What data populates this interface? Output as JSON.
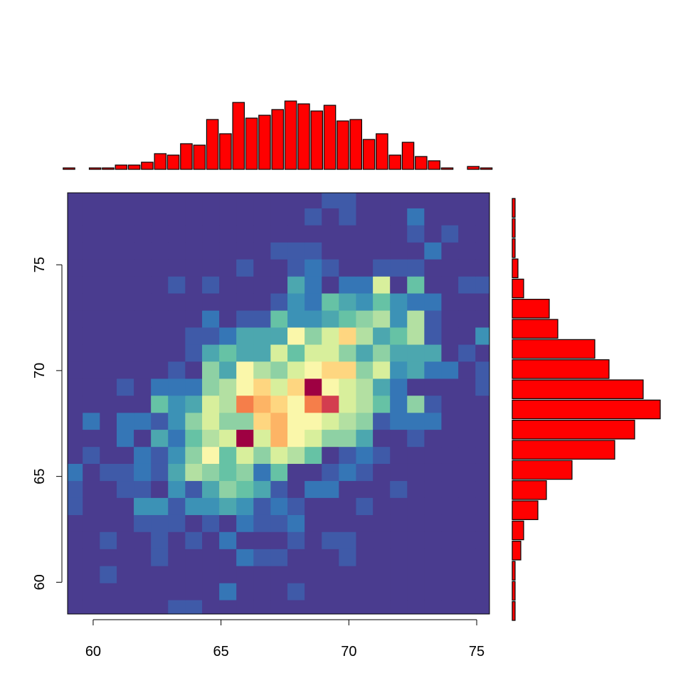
{
  "chart_data": [
    {
      "type": "heatmap",
      "xlim": [
        59,
        75.5
      ],
      "ylim": [
        58.5,
        78.4
      ],
      "xticks": [
        60,
        65,
        70,
        75
      ],
      "yticks": [
        60,
        65,
        70,
        75
      ],
      "xbins": [
        58.92,
        59.59,
        60.26,
        60.92,
        61.59,
        62.26,
        62.93,
        63.6,
        64.26,
        64.93,
        65.6,
        66.27,
        66.94,
        67.6,
        68.27,
        68.94,
        69.61,
        70.28,
        70.94,
        71.61,
        72.28,
        72.95,
        73.62,
        74.28,
        74.95,
        75.62
      ],
      "ybins": [
        58.36,
        59.17,
        59.97,
        60.78,
        61.58,
        62.39,
        63.19,
        64.0,
        64.8,
        65.61,
        66.41,
        67.22,
        68.02,
        68.83,
        69.63,
        70.44,
        71.24,
        72.05,
        72.85,
        73.66,
        74.46,
        75.27,
        76.07,
        76.88,
        77.68,
        78.49
      ],
      "colors": [
        "#4A3C8F",
        "#3F5AA8",
        "#3576B6",
        "#3C92B6",
        "#4CA7AF",
        "#66C2A5",
        "#8ED1A4",
        "#B3E0A2",
        "#D8EF9C",
        "#FAF7AA",
        "#FED680",
        "#FDB465",
        "#F57E4A",
        "#D33D4F",
        "#9E0142"
      ],
      "z": [
        [
          0,
          0,
          0,
          0,
          0,
          0,
          1,
          1,
          0,
          0,
          0,
          0,
          0,
          0,
          0,
          0,
          0,
          0,
          0,
          0,
          0,
          0,
          0,
          0,
          0
        ],
        [
          0,
          0,
          0,
          0,
          0,
          0,
          0,
          0,
          0,
          2,
          0,
          0,
          0,
          1,
          0,
          0,
          0,
          0,
          0,
          0,
          0,
          0,
          0,
          0,
          0
        ],
        [
          0,
          0,
          1,
          0,
          0,
          0,
          0,
          0,
          0,
          0,
          0,
          0,
          0,
          0,
          0,
          0,
          0,
          0,
          0,
          0,
          0,
          0,
          0,
          0,
          0
        ],
        [
          0,
          0,
          0,
          0,
          0,
          1,
          0,
          0,
          0,
          0,
          2,
          1,
          1,
          0,
          0,
          0,
          1,
          0,
          0,
          0,
          0,
          0,
          0,
          0,
          0
        ],
        [
          0,
          0,
          1,
          0,
          0,
          1,
          0,
          1,
          0,
          2,
          0,
          0,
          0,
          1,
          0,
          1,
          1,
          0,
          0,
          0,
          0,
          0,
          0,
          0,
          0
        ],
        [
          0,
          0,
          0,
          0,
          1,
          1,
          1,
          0,
          1,
          0,
          2,
          1,
          1,
          2,
          0,
          0,
          0,
          0,
          0,
          0,
          0,
          0,
          0,
          0,
          0
        ],
        [
          1,
          0,
          0,
          0,
          3,
          3,
          1,
          3,
          3,
          4,
          3,
          1,
          2,
          1,
          0,
          0,
          0,
          1,
          0,
          0,
          0,
          0,
          0,
          0,
          0
        ],
        [
          1,
          0,
          0,
          1,
          1,
          0,
          3,
          1,
          4,
          6,
          5,
          4,
          1,
          0,
          2,
          2,
          0,
          0,
          0,
          1,
          0,
          0,
          0,
          0,
          0
        ],
        [
          2,
          0,
          1,
          1,
          2,
          1,
          4,
          7,
          6,
          5,
          6,
          2,
          5,
          0,
          0,
          1,
          2,
          1,
          0,
          0,
          0,
          0,
          0,
          0,
          0
        ],
        [
          0,
          1,
          0,
          0,
          2,
          1,
          3,
          6,
          9,
          5,
          8,
          6,
          8,
          7,
          5,
          0,
          1,
          2,
          1,
          0,
          0,
          0,
          0,
          0,
          0
        ],
        [
          0,
          0,
          0,
          2,
          0,
          4,
          2,
          5,
          7,
          8,
          14,
          8,
          11,
          9,
          8,
          6,
          6,
          4,
          0,
          0,
          1,
          0,
          0,
          0,
          0
        ],
        [
          0,
          2,
          0,
          2,
          2,
          1,
          3,
          6,
          8,
          6,
          6,
          10,
          11,
          9,
          9,
          8,
          7,
          6,
          1,
          2,
          2,
          2,
          0,
          0,
          0
        ],
        [
          0,
          0,
          0,
          0,
          0,
          5,
          3,
          4,
          8,
          7,
          12,
          11,
          10,
          9,
          12,
          13,
          8,
          7,
          5,
          2,
          6,
          1,
          0,
          0,
          0
        ],
        [
          0,
          0,
          0,
          1,
          0,
          2,
          2,
          2,
          6,
          7,
          9,
          10,
          8,
          10,
          14,
          9,
          8,
          7,
          4,
          2,
          0,
          0,
          0,
          0,
          1
        ],
        [
          0,
          0,
          0,
          0,
          0,
          0,
          1,
          0,
          6,
          4,
          9,
          7,
          6,
          8,
          9,
          10,
          10,
          6,
          8,
          3,
          4,
          2,
          2,
          0,
          1
        ],
        [
          0,
          0,
          0,
          0,
          0,
          0,
          0,
          1,
          4,
          5,
          4,
          4,
          8,
          5,
          8,
          8,
          6,
          4,
          6,
          4,
          4,
          4,
          0,
          1,
          0
        ],
        [
          0,
          0,
          0,
          0,
          0,
          0,
          0,
          1,
          1,
          2,
          4,
          4,
          4,
          9,
          6,
          8,
          10,
          7,
          4,
          5,
          7,
          1,
          0,
          0,
          3
        ],
        [
          0,
          0,
          0,
          0,
          0,
          0,
          0,
          0,
          2,
          0,
          1,
          1,
          5,
          3,
          3,
          4,
          5,
          6,
          7,
          3,
          7,
          1,
          0,
          0,
          0
        ],
        [
          0,
          0,
          0,
          0,
          0,
          0,
          0,
          0,
          0,
          0,
          0,
          0,
          1,
          3,
          2,
          5,
          4,
          3,
          5,
          3,
          2,
          2,
          0,
          0,
          0
        ],
        [
          0,
          0,
          0,
          0,
          0,
          0,
          1,
          0,
          1,
          0,
          0,
          0,
          0,
          4,
          2,
          0,
          2,
          2,
          8,
          0,
          5,
          0,
          0,
          1,
          1
        ],
        [
          0,
          0,
          0,
          0,
          0,
          0,
          0,
          0,
          0,
          0,
          1,
          0,
          0,
          1,
          2,
          1,
          0,
          0,
          1,
          1,
          1,
          0,
          0,
          0,
          0
        ],
        [
          0,
          0,
          0,
          0,
          0,
          0,
          0,
          0,
          0,
          0,
          0,
          0,
          1,
          1,
          1,
          0,
          0,
          0,
          0,
          0,
          0,
          2,
          0,
          0,
          0
        ],
        [
          0,
          0,
          0,
          0,
          0,
          0,
          0,
          0,
          0,
          0,
          0,
          0,
          0,
          0,
          0,
          0,
          0,
          0,
          0,
          0,
          1,
          0,
          1,
          0,
          0
        ],
        [
          0,
          0,
          0,
          0,
          0,
          0,
          0,
          0,
          0,
          0,
          0,
          0,
          0,
          0,
          1,
          0,
          1,
          0,
          0,
          0,
          2,
          0,
          0,
          0,
          0
        ],
        [
          0,
          0,
          0,
          0,
          0,
          0,
          0,
          0,
          0,
          0,
          0,
          0,
          0,
          0,
          0,
          1,
          1,
          0,
          0,
          0,
          0,
          0,
          0,
          0,
          0
        ]
      ]
    },
    {
      "type": "histogram",
      "orientation": "vertical",
      "color": "#FF0000",
      "xlim": [
        59,
        75.5
      ],
      "ylim": [
        0,
        48
      ],
      "bins": [
        58.8,
        59.31,
        59.82,
        60.33,
        60.84,
        61.35,
        61.86,
        62.37,
        62.88,
        63.39,
        63.9,
        64.41,
        64.92,
        65.43,
        65.94,
        66.45,
        66.96,
        67.47,
        67.98,
        68.49,
        69.0,
        69.51,
        70.02,
        70.53,
        71.04,
        71.55,
        72.06,
        72.57,
        73.08,
        73.59,
        74.1,
        74.61,
        75.12,
        75.63
      ],
      "values": [
        1,
        0,
        1,
        1,
        3,
        3,
        5,
        11,
        10,
        18,
        17,
        35,
        25,
        47,
        36,
        38,
        42,
        48,
        46,
        41,
        45,
        34,
        35,
        21,
        25,
        10,
        19,
        9,
        6,
        1,
        0,
        2,
        1
      ]
    },
    {
      "type": "histogram",
      "orientation": "horizontal",
      "color": "#FF0000",
      "xlim": [
        0,
        52
      ],
      "ylim": [
        58.2,
        78.15
      ],
      "bins": [
        58.2,
        59.15,
        60.1,
        61.05,
        62.0,
        62.95,
        63.9,
        64.85,
        65.8,
        66.75,
        67.7,
        68.65,
        69.6,
        70.55,
        71.5,
        72.45,
        73.4,
        74.35,
        75.3,
        76.25,
        77.2,
        78.15
      ],
      "values": [
        1,
        1,
        1,
        3,
        4,
        9,
        12,
        21,
        36,
        43,
        52,
        46,
        34,
        29,
        16,
        13,
        4,
        2,
        1,
        1,
        1
      ]
    }
  ]
}
